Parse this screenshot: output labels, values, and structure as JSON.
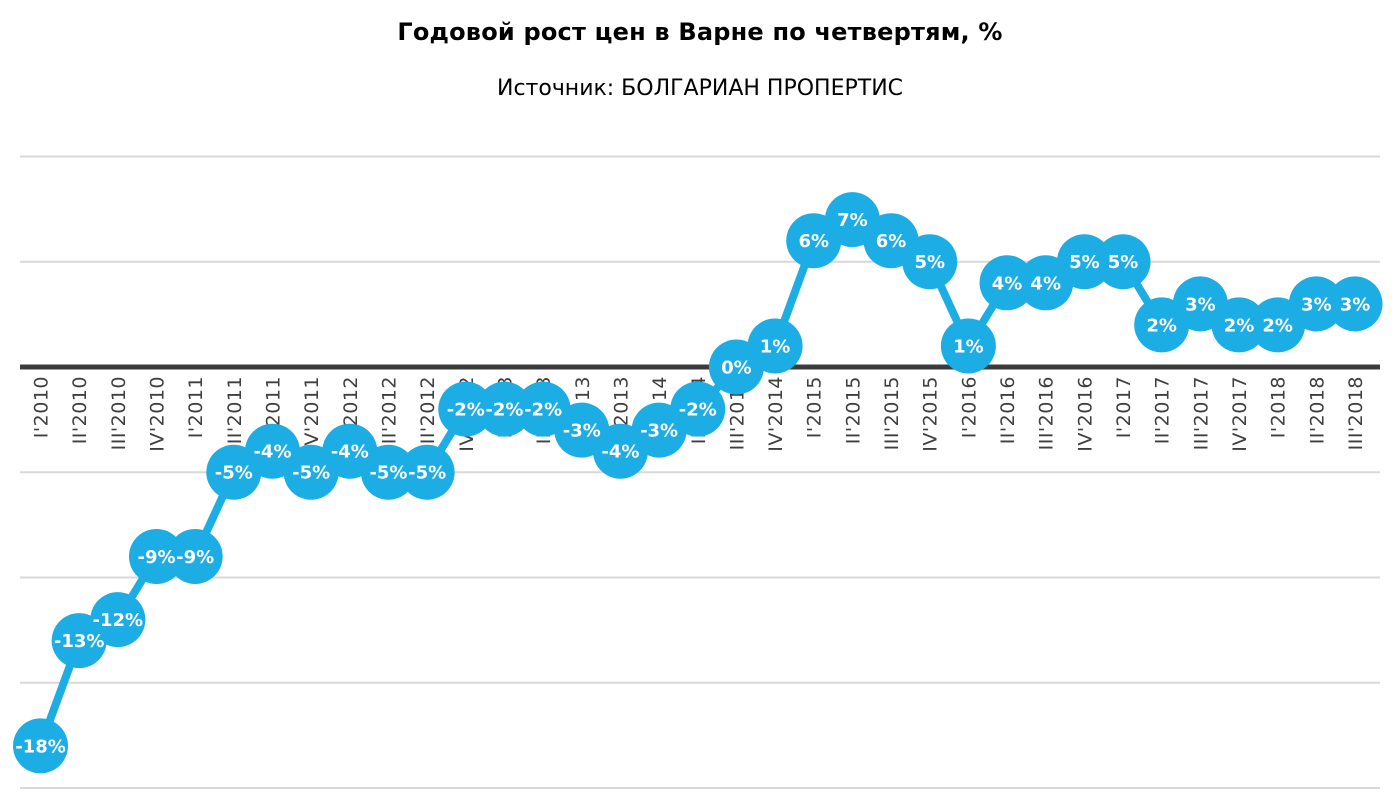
{
  "page": {
    "title": "Годовой рост цен в Варне по четвертям, %",
    "subtitle": "Источник: БОЛГАРИАН ПРОПЕРТИС"
  },
  "chart_data": {
    "type": "line",
    "title": "Годовой рост цен в Варне по четвертям, %",
    "subtitle": "Источник: БОЛГАРИАН ПРОПЕРТИС",
    "xlabel": "",
    "ylabel": "",
    "unit": "%",
    "categories": [
      "I'2010",
      "II'2010",
      "III'2010",
      "IV'2010",
      "I'2011",
      "II'2011",
      "III'2011",
      "IV'2011",
      "I'2012",
      "II'2012",
      "III'2012",
      "IV'2012",
      "I'2013",
      "II'2013",
      "III'2013",
      "IV'2013",
      "I'2014",
      "II'2014",
      "III'2014",
      "IV'2014",
      "I'2015",
      "II'2015",
      "III'2015",
      "IV'2015",
      "I'2016",
      "II'2016",
      "III'2016",
      "IV'2016",
      "I'2017",
      "II'2017",
      "III'2017",
      "IV'2017",
      "I'2018",
      "II'2018",
      "III'2018"
    ],
    "values": [
      -18,
      -13,
      -12,
      -9,
      -9,
      -5,
      -4,
      -5,
      -4,
      -5,
      -5,
      -2,
      -2,
      -2,
      -3,
      -4,
      -3,
      -2,
      0,
      1,
      6,
      7,
      6,
      5,
      1,
      4,
      4,
      5,
      5,
      2,
      3,
      2,
      2,
      3,
      3
    ],
    "point_labels": [
      "-18%",
      "-13%",
      "-12%",
      "-9%",
      "-9%",
      "-5%",
      "-4%",
      "-5%",
      "-4%",
      "-5%",
      "-5%",
      "-2%",
      "-2%",
      "-2%",
      "-3%",
      "-4%",
      "-3%",
      "-2%",
      "0%",
      "1%",
      "6%",
      "7%",
      "6%",
      "5%",
      "1%",
      "4%",
      "4%",
      "5%",
      "5%",
      "2%",
      "3%",
      "2%",
      "2%",
      "3%",
      "3%"
    ],
    "ylim": [
      -20,
      10
    ],
    "gridline_step": 5,
    "grid": "horizontal",
    "legend_position": "none",
    "marker": "circle",
    "data_labels_visible": true,
    "x_tick_rotation_deg": 90,
    "colors": {
      "series": "#1CADE4",
      "data_label_text": "#FFFFFF",
      "zero_axis": "#3B3B3B",
      "gridline": "#D8D8D8",
      "axis_label_text": "#3F3F3F",
      "title_text": "#000000",
      "background": "#FFFFFF"
    }
  }
}
